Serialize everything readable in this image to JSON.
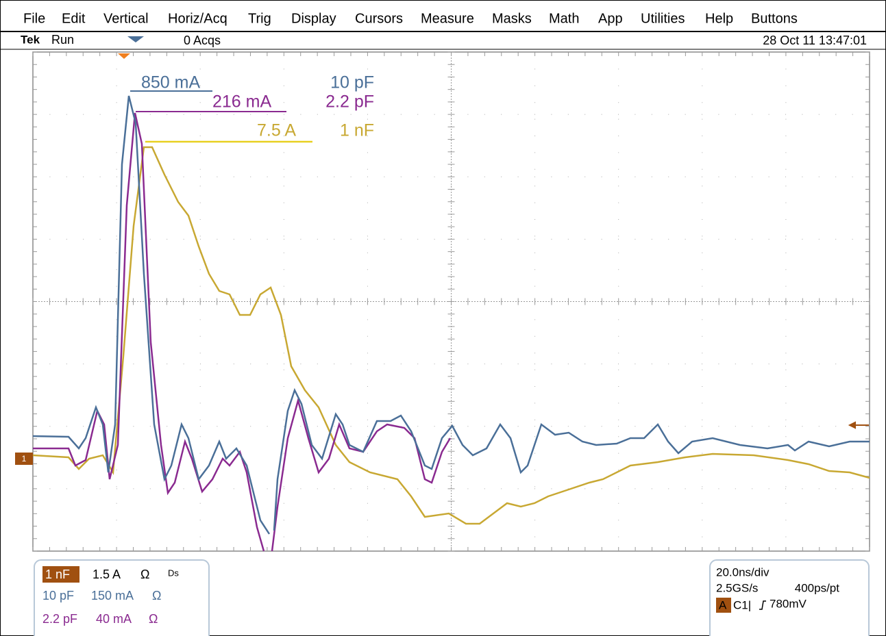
{
  "menu": [
    "File",
    "Edit",
    "Vertical",
    "Horiz/Acq",
    "Trig",
    "Display",
    "Cursors",
    "Measure",
    "Masks",
    "Math",
    "App",
    "Utilities",
    "Help",
    "Buttons"
  ],
  "status": {
    "brand": "Tek",
    "state": "Run",
    "acqs": "0 Acqs",
    "datetime": "28 Oct 11 13:47:01"
  },
  "ground_marker": "1",
  "annotations": [
    {
      "value": "850 mA",
      "label": "10 pF"
    },
    {
      "value": "216 mA",
      "label": "2.2 pF"
    },
    {
      "value": "7.5 A",
      "label": "1 nF"
    }
  ],
  "channels": [
    {
      "name": "1 nF",
      "scale": "1.5 A",
      "unit": "Ω",
      "extra": "Ds"
    },
    {
      "name": "10 pF",
      "scale": "150 mA",
      "unit": "Ω"
    },
    {
      "name": "2.2 pF",
      "scale": "40 mA",
      "unit": "Ω"
    }
  ],
  "timebase": {
    "div": "20.0ns/div",
    "rate": "2.5GS/s",
    "resolution": "400ps/pt",
    "trigger_source": "A",
    "trigger_channel": "C1|",
    "trigger_level": "780mV"
  }
}
